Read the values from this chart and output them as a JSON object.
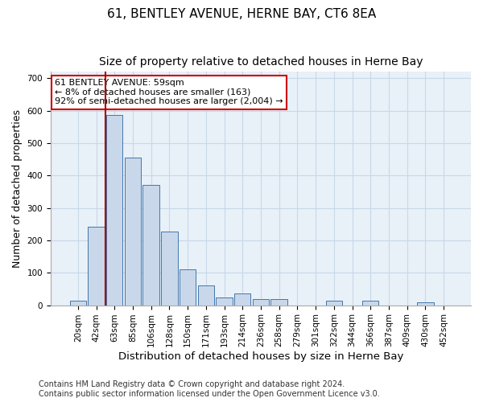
{
  "title1": "61, BENTLEY AVENUE, HERNE BAY, CT6 8EA",
  "title2": "Size of property relative to detached houses in Herne Bay",
  "xlabel": "Distribution of detached houses by size in Herne Bay",
  "ylabel": "Number of detached properties",
  "categories": [
    "20sqm",
    "42sqm",
    "63sqm",
    "85sqm",
    "106sqm",
    "128sqm",
    "150sqm",
    "171sqm",
    "193sqm",
    "214sqm",
    "236sqm",
    "258sqm",
    "279sqm",
    "301sqm",
    "322sqm",
    "344sqm",
    "366sqm",
    "387sqm",
    "409sqm",
    "430sqm",
    "452sqm"
  ],
  "values": [
    15,
    243,
    587,
    455,
    370,
    228,
    110,
    60,
    25,
    35,
    18,
    18,
    0,
    0,
    13,
    0,
    13,
    0,
    0,
    8,
    0
  ],
  "bar_color": "#c8d8ea",
  "bar_edge_color": "#4477aa",
  "vline_color": "#aa0000",
  "vline_pos": 1.5,
  "annotation_text": "61 BENTLEY AVENUE: 59sqm\n← 8% of detached houses are smaller (163)\n92% of semi-detached houses are larger (2,004) →",
  "annotation_box_color": "#ffffff",
  "annotation_box_edge_color": "#cc0000",
  "ylim": [
    0,
    720
  ],
  "yticks": [
    0,
    100,
    200,
    300,
    400,
    500,
    600,
    700
  ],
  "grid_color": "#c8d8e8",
  "bg_color": "#e8f0f8",
  "footer": "Contains HM Land Registry data © Crown copyright and database right 2024.\nContains public sector information licensed under the Open Government Licence v3.0.",
  "title1_fontsize": 11,
  "title2_fontsize": 10,
  "xlabel_fontsize": 9.5,
  "ylabel_fontsize": 9,
  "footer_fontsize": 7,
  "tick_fontsize": 7.5
}
